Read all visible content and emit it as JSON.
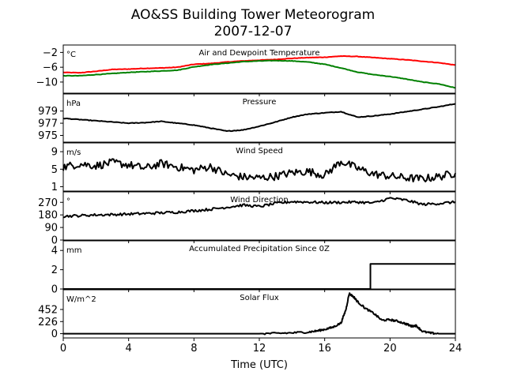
{
  "figure": {
    "title_line1": "AO&SS Building Tower Meteorogram",
    "title_line2": "2007-12-07",
    "xlabel": "Time (UTC)"
  },
  "chart_data": {
    "type": "line",
    "x_axis": {
      "label": "Time (UTC)",
      "range": [
        0,
        24
      ],
      "ticks": [
        0,
        4,
        8,
        12,
        16,
        20,
        24
      ]
    },
    "panels": [
      {
        "id": "temperature",
        "title": "Air and Dewpoint Temperature",
        "unit": "°C",
        "ylim": [
          -13,
          0
        ],
        "yticks": [
          -2,
          -6,
          -10
        ],
        "ytick_labels": [
          "−2",
          "−6",
          "−10"
        ],
        "series": [
          {
            "color": "#ff0000",
            "x": [
              0,
              1,
              2,
              3,
              4,
              5,
              6,
              7,
              8,
              9,
              10,
              11,
              12,
              13,
              14,
              15,
              16,
              17,
              18,
              19,
              20,
              21,
              22,
              23,
              24
            ],
            "values": [
              -7.4,
              -7.5,
              -7.1,
              -6.6,
              -6.5,
              -6.3,
              -6.2,
              -6.0,
              -5.2,
              -5.0,
              -4.6,
              -4.3,
              -4.1,
              -3.9,
              -3.6,
              -3.4,
              -3.3,
              -3.0,
              -3.1,
              -3.4,
              -3.7,
              -4.0,
              -4.4,
              -4.8,
              -5.4
            ]
          },
          {
            "color": "#008000",
            "x": [
              0,
              1,
              2,
              3,
              4,
              5,
              6,
              7,
              8,
              9,
              10,
              11,
              12,
              13,
              14,
              15,
              16,
              17,
              18,
              19,
              20,
              21,
              22,
              23,
              24
            ],
            "values": [
              -8.3,
              -8.3,
              -8.0,
              -7.7,
              -7.4,
              -7.2,
              -7.0,
              -6.8,
              -5.9,
              -5.3,
              -4.9,
              -4.5,
              -4.3,
              -4.2,
              -4.3,
              -4.6,
              -5.2,
              -6.2,
              -7.3,
              -8.0,
              -8.5,
              -9.2,
              -10.0,
              -10.5,
              -11.6
            ]
          }
        ]
      },
      {
        "id": "pressure",
        "title": "Pressure",
        "unit": "hPa",
        "ylim": [
          973.9,
          981.8
        ],
        "yticks": [
          975,
          977,
          979
        ],
        "ytick_labels": [
          "975",
          "977",
          "979"
        ],
        "series": [
          {
            "color": "#000000",
            "x": [
              0,
              1,
              2,
              3,
              4,
              5,
              6,
              7,
              8,
              9,
              10,
              11,
              12,
              13,
              14,
              15,
              16,
              17,
              18,
              19,
              20,
              21,
              22,
              23,
              24
            ],
            "values": [
              977.8,
              977.6,
              977.4,
              977.2,
              977.0,
              977.1,
              977.3,
              977.0,
              976.7,
              976.2,
              975.7,
              975.9,
              976.5,
              977.2,
              978.0,
              978.5,
              978.7,
              978.9,
              978.0,
              978.2,
              978.5,
              978.9,
              979.3,
              979.7,
              980.2
            ]
          }
        ]
      },
      {
        "id": "wind_speed",
        "title": "Wind Speed",
        "unit": "m/s",
        "ylim": [
          0,
          11
        ],
        "yticks": [
          1,
          5,
          9
        ],
        "ytick_labels": [
          "1",
          "5",
          "9"
        ],
        "series": [
          {
            "color": "#000000",
            "x": [
              0,
              1,
              2,
              3,
              4,
              5,
              6,
              7,
              8,
              9,
              10,
              11,
              12,
              13,
              14,
              15,
              16,
              17,
              18,
              19,
              20,
              21,
              22,
              23,
              24
            ],
            "values": [
              5.5,
              6.2,
              5.8,
              6.5,
              6.0,
              5.2,
              6.3,
              5.5,
              4.8,
              5.6,
              3.8,
              3.2,
              3.0,
              3.4,
              4.2,
              4.5,
              3.6,
              6.8,
              5.2,
              3.9,
              3.4,
              3.0,
              2.8,
              3.3,
              4.1
            ]
          }
        ]
      },
      {
        "id": "wind_direction",
        "title": "Wind Direction",
        "unit": "°",
        "ylim": [
          0,
          345
        ],
        "yticks": [
          0,
          90,
          180,
          270
        ],
        "ytick_labels": [
          "0",
          "90",
          "180",
          "270"
        ],
        "series": [
          {
            "color": "#000000",
            "x": [
              0,
              1,
              2,
              3,
              4,
              5,
              6,
              7,
              8,
              9,
              10,
              11,
              12,
              13,
              14,
              15,
              16,
              17,
              18,
              19,
              20,
              21,
              22,
              23,
              24
            ],
            "values": [
              170,
              175,
              180,
              182,
              186,
              190,
              195,
              200,
              210,
              220,
              235,
              250,
              240,
              262,
              275,
              272,
              268,
              270,
              272,
              265,
              300,
              285,
              255,
              262,
              272
            ]
          }
        ]
      },
      {
        "id": "precipitation",
        "title": "Accumulated Precipitation Since 0Z",
        "unit": "mm",
        "ylim": [
          0,
          5
        ],
        "yticks": [
          0,
          2,
          4
        ],
        "ytick_labels": [
          "0",
          "2",
          "4"
        ],
        "series": [
          {
            "color": "#000000",
            "x": [
              0,
              18.8,
              18.8,
              24
            ],
            "values": [
              0,
              0,
              2.6,
              2.6
            ]
          }
        ]
      },
      {
        "id": "solar_flux",
        "title": "Solar Flux",
        "unit": "W/m^2",
        "ylim": [
          -80,
          820
        ],
        "yticks": [
          0,
          226,
          452
        ],
        "ytick_labels": [
          "0",
          "226",
          "452"
        ],
        "series": [
          {
            "color": "#000000",
            "x": [
              0,
              8,
              12,
              13,
              14,
              15,
              15.5,
              16,
              16.5,
              17,
              17.3,
              17.5,
              17.8,
              18,
              18.5,
              19,
              19.5,
              20,
              20.5,
              21,
              21.3,
              21.6,
              22,
              22.5,
              23,
              24
            ],
            "values": [
              0,
              0,
              0,
              5,
              15,
              30,
              50,
              80,
              120,
              200,
              450,
              750,
              680,
              600,
              470,
              380,
              250,
              260,
              230,
              180,
              140,
              150,
              40,
              10,
              0,
              0
            ]
          }
        ]
      }
    ]
  }
}
